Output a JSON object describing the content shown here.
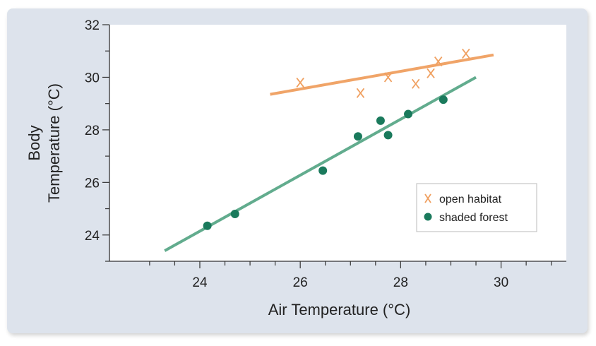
{
  "chart_data": {
    "type": "scatter",
    "xlabel": "Air Temperature (°C)",
    "ylabel_lines": [
      "Body",
      "Temperature (°C)"
    ],
    "xlim": [
      22.2,
      31.3
    ],
    "ylim": [
      23,
      32
    ],
    "xticks": [
      24,
      26,
      28,
      30
    ],
    "yticks": [
      24,
      26,
      28,
      30,
      32
    ],
    "grid": false,
    "legend_position": "bottom-right",
    "series": [
      {
        "name": "open habitat",
        "marker": "x",
        "color": "#f0a060",
        "points": [
          {
            "x": 26.0,
            "y": 29.8
          },
          {
            "x": 27.2,
            "y": 29.4
          },
          {
            "x": 27.75,
            "y": 30.0
          },
          {
            "x": 28.3,
            "y": 29.75
          },
          {
            "x": 28.6,
            "y": 30.15
          },
          {
            "x": 28.75,
            "y": 30.6
          },
          {
            "x": 29.3,
            "y": 30.9
          }
        ],
        "fit": {
          "x1": 25.4,
          "y1": 29.35,
          "x2": 29.85,
          "y2": 30.85
        }
      },
      {
        "name": "shaded forest",
        "marker": "circle",
        "color": "#1a7a5c",
        "points": [
          {
            "x": 24.15,
            "y": 24.35
          },
          {
            "x": 24.7,
            "y": 24.8
          },
          {
            "x": 26.45,
            "y": 26.45
          },
          {
            "x": 27.15,
            "y": 27.75
          },
          {
            "x": 27.6,
            "y": 28.35
          },
          {
            "x": 27.75,
            "y": 27.8
          },
          {
            "x": 28.15,
            "y": 28.6
          },
          {
            "x": 28.85,
            "y": 29.15
          }
        ],
        "fit": {
          "x1": 23.3,
          "y1": 23.4,
          "x2": 29.5,
          "y2": 30.0
        },
        "fit_color": "#5aa888"
      }
    ]
  }
}
